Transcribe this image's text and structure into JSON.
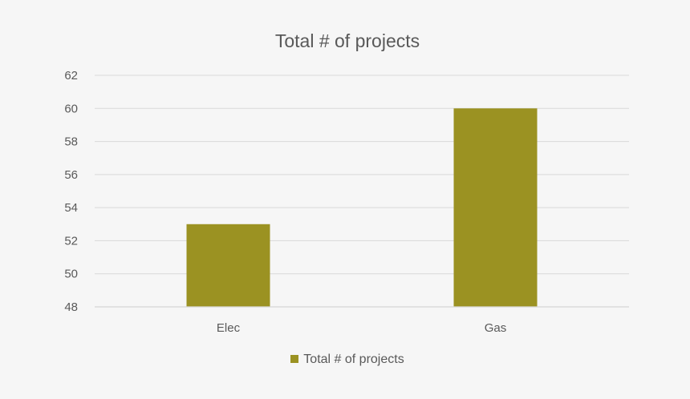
{
  "colors": {
    "background": "#f6f6f6",
    "bar": "#9b9222",
    "grid": "#d9d9d9",
    "text": "#595959"
  },
  "chart_data": {
    "type": "bar",
    "title": "Total # of projects",
    "xlabel": "",
    "ylabel": "",
    "categories": [
      "Elec",
      "Gas"
    ],
    "series": [
      {
        "name": "Total # of projects",
        "values": [
          53,
          60
        ]
      }
    ],
    "ylim": [
      48,
      62
    ],
    "yticks": [
      "48",
      "50",
      "52",
      "54",
      "56",
      "58",
      "60",
      "62"
    ],
    "grid": true,
    "legend_position": "bottom"
  }
}
